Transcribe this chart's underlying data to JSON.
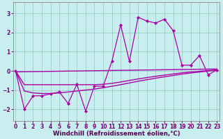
{
  "background_color": "#c8eef0",
  "grid_color": "#90c8b8",
  "line_color": "#aa00aa",
  "xlabel": "Windchill (Refroidissement éolien,°C)",
  "xlim": [
    -0.3,
    23.3
  ],
  "ylim": [
    -2.6,
    3.6
  ],
  "yticks": [
    -2,
    -1,
    0,
    1,
    2,
    3
  ],
  "xticks": [
    0,
    1,
    2,
    3,
    4,
    5,
    6,
    7,
    8,
    9,
    10,
    11,
    12,
    13,
    14,
    15,
    16,
    17,
    18,
    19,
    20,
    21,
    22,
    23
  ],
  "data_x": [
    0,
    1,
    2,
    3,
    4,
    5,
    6,
    7,
    8,
    9,
    10,
    11,
    12,
    13,
    14,
    15,
    16,
    17,
    18,
    19,
    20,
    21,
    22,
    23
  ],
  "data_y": [
    0,
    -2.0,
    -1.3,
    -1.3,
    -1.2,
    -1.1,
    -1.7,
    -0.7,
    -2.1,
    -0.8,
    -0.8,
    0.5,
    2.4,
    0.5,
    2.8,
    2.6,
    2.5,
    2.7,
    2.1,
    0.3,
    0.3,
    0.8,
    -0.2,
    0.05
  ],
  "line1_x": [
    0,
    23
  ],
  "line1_y": [
    -0.05,
    0.1
  ],
  "line2_x": [
    0,
    1,
    2,
    3,
    4,
    5,
    6,
    7,
    8,
    9,
    10,
    11,
    12,
    13,
    14,
    15,
    16,
    17,
    18,
    19,
    20,
    21,
    22,
    23
  ],
  "line2_y": [
    0,
    -0.72,
    -0.72,
    -0.72,
    -0.72,
    -0.72,
    -0.72,
    -0.72,
    -0.72,
    -0.72,
    -0.7,
    -0.65,
    -0.58,
    -0.5,
    -0.42,
    -0.35,
    -0.28,
    -0.22,
    -0.16,
    -0.1,
    -0.06,
    -0.02,
    0.02,
    0.05
  ],
  "line3_x": [
    0,
    1,
    2,
    3,
    4,
    5,
    6,
    7,
    8,
    9,
    10,
    11,
    12,
    13,
    14,
    15,
    16,
    17,
    18,
    19,
    20,
    21,
    22,
    23
  ],
  "line3_y": [
    0,
    -1.05,
    -1.15,
    -1.18,
    -1.18,
    -1.15,
    -1.1,
    -1.05,
    -1.0,
    -0.95,
    -0.88,
    -0.8,
    -0.72,
    -0.63,
    -0.54,
    -0.46,
    -0.38,
    -0.31,
    -0.24,
    -0.17,
    -0.11,
    -0.06,
    -0.01,
    0.04
  ],
  "tick_fontsize": 5.5,
  "xlabel_fontsize": 6.2,
  "tick_color": "#770077",
  "label_color": "#550055"
}
